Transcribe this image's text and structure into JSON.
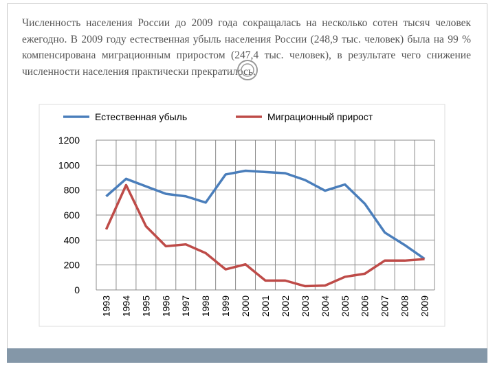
{
  "text": "Численность населения России до 2009 года сокращалась на несколько сотен тысяч человек ежегодно. В 2009 году естественная убыль населения России (248,9 тыс. человек) была на 99 % компенсирована миграционным приростом (247,4 тыс. человек), в результате чего снижение численности населения практически прекратилось.",
  "chart_data": {
    "type": "line",
    "categories": [
      "1993",
      "1994",
      "1995",
      "1996",
      "1997",
      "1998",
      "1999",
      "2000",
      "2001",
      "2002",
      "2003",
      "2004",
      "2005",
      "2006",
      "2007",
      "2008",
      "2009"
    ],
    "series": [
      {
        "name": "Естественная убыль",
        "color": "#4a7ebb",
        "values": [
          750,
          890,
          830,
          770,
          750,
          700,
          925,
          955,
          945,
          935,
          880,
          795,
          845,
          690,
          460,
          360,
          249
        ]
      },
      {
        "name": "Миграционный прирост",
        "color": "#be4b48",
        "values": [
          485,
          840,
          510,
          350,
          365,
          295,
          165,
          205,
          75,
          75,
          30,
          35,
          105,
          130,
          235,
          235,
          247
        ]
      }
    ],
    "ylim": [
      0,
      1200
    ],
    "yticks": [
      0,
      200,
      400,
      600,
      800,
      1000,
      1200
    ],
    "grid": true,
    "legend": "top"
  }
}
